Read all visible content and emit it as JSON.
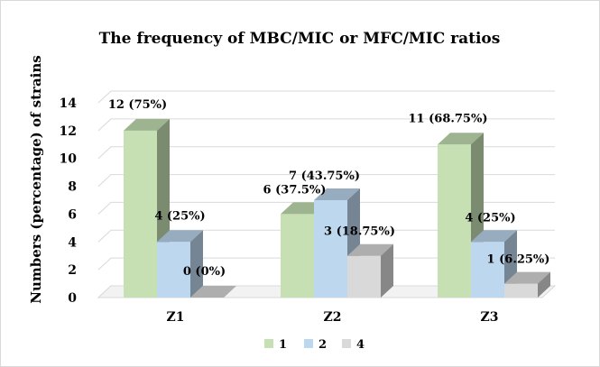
{
  "chart_data": {
    "type": "bar",
    "title": "The frequency of MBC/MIC or MFC/MIC ratios",
    "ylabel": "Numbers (percentage) of strains",
    "xlabel": "",
    "ylim": [
      0,
      14
    ],
    "yticks": [
      "0",
      "2",
      "4",
      "6",
      "8",
      "10",
      "12",
      "14"
    ],
    "categories": [
      "Z1",
      "Z2",
      "Z3"
    ],
    "series": [
      {
        "name": "1",
        "color": "#c6e0b4",
        "values": [
          12,
          6,
          11
        ],
        "labels": [
          "12 (75%)",
          "6 (37.5%)",
          "11 (68.75%)"
        ]
      },
      {
        "name": "2",
        "color": "#bdd7ee",
        "values": [
          4,
          7,
          4
        ],
        "labels": [
          "4 (25%)",
          "7 (43.75%)",
          "4 (25%)"
        ]
      },
      {
        "name": "4",
        "color": "#d9d9d9",
        "values": [
          0,
          3,
          1
        ],
        "labels": [
          "0 (0%)",
          "3 (18.75%)",
          "1 (6.25%)"
        ]
      }
    ],
    "legend_position": "bottom",
    "grid": true,
    "style": "3d-column"
  }
}
